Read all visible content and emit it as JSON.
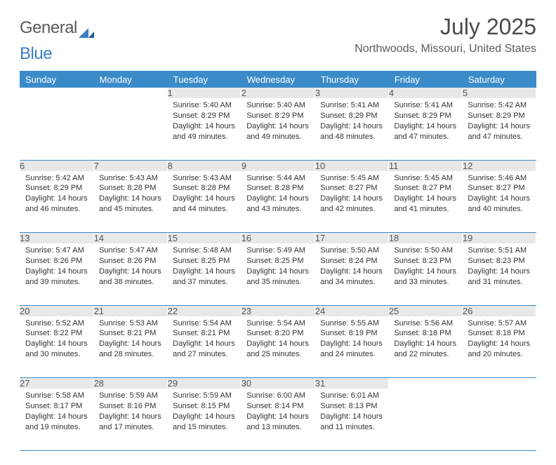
{
  "logo": {
    "part1": "General",
    "part2": "Blue"
  },
  "title": "July 2025",
  "location": "Northwoods, Missouri, United States",
  "weekdays": [
    "Sunday",
    "Monday",
    "Tuesday",
    "Wednesday",
    "Thursday",
    "Friday",
    "Saturday"
  ],
  "colors": {
    "header_bg": "#3b8bc9",
    "header_text": "#ffffff",
    "daynum_bg": "#e8e8e8",
    "rule": "#3b8bc9",
    "logo_blue": "#3b7fc4",
    "text": "#333333"
  },
  "weeks": [
    [
      null,
      null,
      {
        "n": "1",
        "sunrise": "Sunrise: 5:40 AM",
        "sunset": "Sunset: 8:29 PM",
        "day": "Daylight: 14 hours and 49 minutes."
      },
      {
        "n": "2",
        "sunrise": "Sunrise: 5:40 AM",
        "sunset": "Sunset: 8:29 PM",
        "day": "Daylight: 14 hours and 49 minutes."
      },
      {
        "n": "3",
        "sunrise": "Sunrise: 5:41 AM",
        "sunset": "Sunset: 8:29 PM",
        "day": "Daylight: 14 hours and 48 minutes."
      },
      {
        "n": "4",
        "sunrise": "Sunrise: 5:41 AM",
        "sunset": "Sunset: 8:29 PM",
        "day": "Daylight: 14 hours and 47 minutes."
      },
      {
        "n": "5",
        "sunrise": "Sunrise: 5:42 AM",
        "sunset": "Sunset: 8:29 PM",
        "day": "Daylight: 14 hours and 47 minutes."
      }
    ],
    [
      {
        "n": "6",
        "sunrise": "Sunrise: 5:42 AM",
        "sunset": "Sunset: 8:29 PM",
        "day": "Daylight: 14 hours and 46 minutes."
      },
      {
        "n": "7",
        "sunrise": "Sunrise: 5:43 AM",
        "sunset": "Sunset: 8:28 PM",
        "day": "Daylight: 14 hours and 45 minutes."
      },
      {
        "n": "8",
        "sunrise": "Sunrise: 5:43 AM",
        "sunset": "Sunset: 8:28 PM",
        "day": "Daylight: 14 hours and 44 minutes."
      },
      {
        "n": "9",
        "sunrise": "Sunrise: 5:44 AM",
        "sunset": "Sunset: 8:28 PM",
        "day": "Daylight: 14 hours and 43 minutes."
      },
      {
        "n": "10",
        "sunrise": "Sunrise: 5:45 AM",
        "sunset": "Sunset: 8:27 PM",
        "day": "Daylight: 14 hours and 42 minutes."
      },
      {
        "n": "11",
        "sunrise": "Sunrise: 5:45 AM",
        "sunset": "Sunset: 8:27 PM",
        "day": "Daylight: 14 hours and 41 minutes."
      },
      {
        "n": "12",
        "sunrise": "Sunrise: 5:46 AM",
        "sunset": "Sunset: 8:27 PM",
        "day": "Daylight: 14 hours and 40 minutes."
      }
    ],
    [
      {
        "n": "13",
        "sunrise": "Sunrise: 5:47 AM",
        "sunset": "Sunset: 8:26 PM",
        "day": "Daylight: 14 hours and 39 minutes."
      },
      {
        "n": "14",
        "sunrise": "Sunrise: 5:47 AM",
        "sunset": "Sunset: 8:26 PM",
        "day": "Daylight: 14 hours and 38 minutes."
      },
      {
        "n": "15",
        "sunrise": "Sunrise: 5:48 AM",
        "sunset": "Sunset: 8:25 PM",
        "day": "Daylight: 14 hours and 37 minutes."
      },
      {
        "n": "16",
        "sunrise": "Sunrise: 5:49 AM",
        "sunset": "Sunset: 8:25 PM",
        "day": "Daylight: 14 hours and 35 minutes."
      },
      {
        "n": "17",
        "sunrise": "Sunrise: 5:50 AM",
        "sunset": "Sunset: 8:24 PM",
        "day": "Daylight: 14 hours and 34 minutes."
      },
      {
        "n": "18",
        "sunrise": "Sunrise: 5:50 AM",
        "sunset": "Sunset: 8:23 PM",
        "day": "Daylight: 14 hours and 33 minutes."
      },
      {
        "n": "19",
        "sunrise": "Sunrise: 5:51 AM",
        "sunset": "Sunset: 8:23 PM",
        "day": "Daylight: 14 hours and 31 minutes."
      }
    ],
    [
      {
        "n": "20",
        "sunrise": "Sunrise: 5:52 AM",
        "sunset": "Sunset: 8:22 PM",
        "day": "Daylight: 14 hours and 30 minutes."
      },
      {
        "n": "21",
        "sunrise": "Sunrise: 5:53 AM",
        "sunset": "Sunset: 8:21 PM",
        "day": "Daylight: 14 hours and 28 minutes."
      },
      {
        "n": "22",
        "sunrise": "Sunrise: 5:54 AM",
        "sunset": "Sunset: 8:21 PM",
        "day": "Daylight: 14 hours and 27 minutes."
      },
      {
        "n": "23",
        "sunrise": "Sunrise: 5:54 AM",
        "sunset": "Sunset: 8:20 PM",
        "day": "Daylight: 14 hours and 25 minutes."
      },
      {
        "n": "24",
        "sunrise": "Sunrise: 5:55 AM",
        "sunset": "Sunset: 8:19 PM",
        "day": "Daylight: 14 hours and 24 minutes."
      },
      {
        "n": "25",
        "sunrise": "Sunrise: 5:56 AM",
        "sunset": "Sunset: 8:18 PM",
        "day": "Daylight: 14 hours and 22 minutes."
      },
      {
        "n": "26",
        "sunrise": "Sunrise: 5:57 AM",
        "sunset": "Sunset: 8:18 PM",
        "day": "Daylight: 14 hours and 20 minutes."
      }
    ],
    [
      {
        "n": "27",
        "sunrise": "Sunrise: 5:58 AM",
        "sunset": "Sunset: 8:17 PM",
        "day": "Daylight: 14 hours and 19 minutes."
      },
      {
        "n": "28",
        "sunrise": "Sunrise: 5:59 AM",
        "sunset": "Sunset: 8:16 PM",
        "day": "Daylight: 14 hours and 17 minutes."
      },
      {
        "n": "29",
        "sunrise": "Sunrise: 5:59 AM",
        "sunset": "Sunset: 8:15 PM",
        "day": "Daylight: 14 hours and 15 minutes."
      },
      {
        "n": "30",
        "sunrise": "Sunrise: 6:00 AM",
        "sunset": "Sunset: 8:14 PM",
        "day": "Daylight: 14 hours and 13 minutes."
      },
      {
        "n": "31",
        "sunrise": "Sunrise: 6:01 AM",
        "sunset": "Sunset: 8:13 PM",
        "day": "Daylight: 14 hours and 11 minutes."
      },
      null,
      null
    ]
  ]
}
